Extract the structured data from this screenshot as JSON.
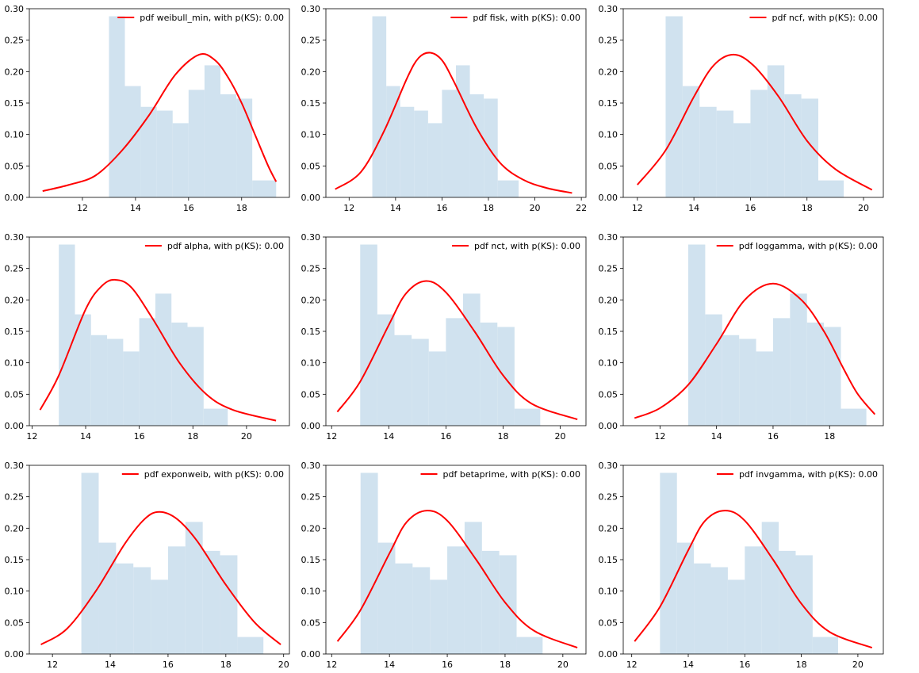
{
  "chart_data": {
    "type": "bar",
    "title": "",
    "xlabel": "",
    "ylabel": "",
    "grid": false,
    "legend_placement": "top-right",
    "hist_color": "#d0e2ef",
    "curve_color": "#ff0000",
    "histogram": {
      "bin_edges": [
        13.0,
        13.6,
        14.2,
        14.8,
        15.4,
        16.0,
        16.6,
        17.2,
        17.8,
        18.4,
        19.3
      ],
      "densities": [
        0.288,
        0.177,
        0.144,
        0.138,
        0.118,
        0.171,
        0.21,
        0.164,
        0.157,
        0.027
      ]
    },
    "panels": [
      {
        "legend": "pdf weibull_min, with p(KS): 0.00",
        "xlim": [
          10.0,
          19.8
        ],
        "ylim": [
          0,
          0.3
        ],
        "xticks": [
          "12",
          "14",
          "16",
          "18"
        ],
        "xtick_values": [
          12,
          14,
          16,
          18
        ],
        "yticks": [
          "0.00",
          "0.05",
          "0.10",
          "0.15",
          "0.20",
          "0.25",
          "0.30"
        ],
        "curve": {
          "x": [
            10.5,
            11.5,
            12.5,
            13.5,
            14.5,
            15.5,
            16.4,
            17.0,
            17.5,
            18.0,
            18.5,
            19.0,
            19.3
          ],
          "y": [
            0.01,
            0.02,
            0.035,
            0.075,
            0.13,
            0.195,
            0.227,
            0.218,
            0.19,
            0.15,
            0.1,
            0.05,
            0.025
          ]
        }
      },
      {
        "legend": "pdf fisk, with p(KS): 0.00",
        "xlim": [
          11.0,
          22.2
        ],
        "ylim": [
          0,
          0.3
        ],
        "xticks": [
          "12",
          "14",
          "16",
          "18",
          "20",
          "22"
        ],
        "xtick_values": [
          12,
          14,
          16,
          18,
          20,
          22
        ],
        "yticks": [
          "0.00",
          "0.05",
          "0.10",
          "0.15",
          "0.20",
          "0.25",
          "0.30"
        ],
        "curve": {
          "x": [
            11.4,
            12.5,
            13.5,
            14.5,
            15.0,
            15.5,
            16.0,
            16.5,
            17.5,
            18.5,
            19.5,
            20.5,
            21.6
          ],
          "y": [
            0.013,
            0.04,
            0.105,
            0.19,
            0.222,
            0.23,
            0.218,
            0.185,
            0.11,
            0.055,
            0.028,
            0.015,
            0.007
          ]
        }
      },
      {
        "legend": "pdf ncf, with p(KS): 0.00",
        "xlim": [
          11.5,
          20.7
        ],
        "ylim": [
          0,
          0.3
        ],
        "xticks": [
          "12",
          "14",
          "16",
          "18",
          "20"
        ],
        "xtick_values": [
          12,
          14,
          16,
          18,
          20
        ],
        "yticks": [
          "0.00",
          "0.05",
          "0.10",
          "0.15",
          "0.20",
          "0.25",
          "0.30"
        ],
        "curve": {
          "x": [
            12.0,
            13.0,
            14.0,
            14.7,
            15.4,
            16.1,
            17.0,
            18.0,
            19.0,
            20.3
          ],
          "y": [
            0.02,
            0.075,
            0.16,
            0.21,
            0.227,
            0.21,
            0.16,
            0.09,
            0.045,
            0.012
          ]
        }
      },
      {
        "legend": "pdf alpha, with p(KS): 0.00",
        "xlim": [
          11.9,
          21.6
        ],
        "ylim": [
          0,
          0.3
        ],
        "xticks": [
          "12",
          "14",
          "16",
          "18",
          "20"
        ],
        "xtick_values": [
          12,
          14,
          16,
          18,
          20
        ],
        "yticks": [
          "0.00",
          "0.05",
          "0.10",
          "0.15",
          "0.20",
          "0.25",
          "0.30"
        ],
        "curve": {
          "x": [
            12.3,
            13.0,
            14.0,
            14.6,
            15.1,
            15.7,
            16.5,
            17.5,
            18.5,
            19.5,
            21.1
          ],
          "y": [
            0.025,
            0.08,
            0.185,
            0.222,
            0.232,
            0.22,
            0.17,
            0.1,
            0.05,
            0.025,
            0.008
          ]
        }
      },
      {
        "legend": "pdf nct, with p(KS): 0.00",
        "xlim": [
          11.8,
          20.9
        ],
        "ylim": [
          0,
          0.3
        ],
        "xticks": [
          "12",
          "14",
          "16",
          "18",
          "20"
        ],
        "xtick_values": [
          12,
          14,
          16,
          18,
          20
        ],
        "yticks": [
          "0.00",
          "0.05",
          "0.10",
          "0.15",
          "0.20",
          "0.25",
          "0.30"
        ],
        "curve": {
          "x": [
            12.2,
            13.0,
            14.0,
            14.6,
            15.3,
            16.0,
            17.0,
            18.0,
            19.0,
            20.6
          ],
          "y": [
            0.022,
            0.07,
            0.16,
            0.21,
            0.23,
            0.212,
            0.15,
            0.08,
            0.035,
            0.01
          ]
        }
      },
      {
        "legend": "pdf loggamma, with p(KS): 0.00",
        "xlim": [
          10.7,
          19.9
        ],
        "ylim": [
          0,
          0.3
        ],
        "xticks": [
          "12",
          "14",
          "16",
          "18"
        ],
        "xtick_values": [
          12,
          14,
          16,
          18
        ],
        "yticks": [
          "0.00",
          "0.05",
          "0.10",
          "0.15",
          "0.20",
          "0.25",
          "0.30"
        ],
        "curve": {
          "x": [
            11.1,
            12.0,
            13.0,
            14.0,
            15.0,
            16.0,
            17.0,
            17.8,
            18.5,
            19.0,
            19.6
          ],
          "y": [
            0.012,
            0.028,
            0.065,
            0.13,
            0.2,
            0.226,
            0.2,
            0.15,
            0.09,
            0.05,
            0.018
          ]
        }
      },
      {
        "legend": "pdf exponweib, with p(KS): 0.00",
        "xlim": [
          11.2,
          20.2
        ],
        "ylim": [
          0,
          0.3
        ],
        "xticks": [
          "12",
          "14",
          "16",
          "18",
          "20"
        ],
        "xtick_values": [
          12,
          14,
          16,
          18,
          20
        ],
        "yticks": [
          "0.00",
          "0.05",
          "0.10",
          "0.15",
          "0.20",
          "0.25",
          "0.30"
        ],
        "curve": {
          "x": [
            11.6,
            12.5,
            13.5,
            14.5,
            15.2,
            15.7,
            16.3,
            17.0,
            18.0,
            19.0,
            19.9
          ],
          "y": [
            0.015,
            0.04,
            0.1,
            0.175,
            0.215,
            0.226,
            0.215,
            0.18,
            0.11,
            0.05,
            0.015
          ]
        }
      },
      {
        "legend": "pdf betaprime, with p(KS): 0.00",
        "xlim": [
          11.8,
          20.8
        ],
        "ylim": [
          0,
          0.3
        ],
        "xticks": [
          "12",
          "14",
          "16",
          "18",
          "20"
        ],
        "xtick_values": [
          12,
          14,
          16,
          18,
          20
        ],
        "yticks": [
          "0.00",
          "0.05",
          "0.10",
          "0.15",
          "0.20",
          "0.25",
          "0.30"
        ],
        "curve": {
          "x": [
            12.2,
            13.0,
            14.0,
            14.6,
            15.3,
            16.0,
            17.0,
            18.0,
            19.0,
            20.5
          ],
          "y": [
            0.02,
            0.07,
            0.16,
            0.21,
            0.228,
            0.212,
            0.15,
            0.082,
            0.037,
            0.01
          ]
        }
      },
      {
        "legend": "pdf invgamma, with p(KS): 0.00",
        "xlim": [
          11.7,
          20.9
        ],
        "ylim": [
          0,
          0.3
        ],
        "xticks": [
          "12",
          "14",
          "16",
          "18",
          "20"
        ],
        "xtick_values": [
          12,
          14,
          16,
          18,
          20
        ],
        "yticks": [
          "0.00",
          "0.05",
          "0.10",
          "0.15",
          "0.20",
          "0.25",
          "0.30"
        ],
        "curve": {
          "x": [
            12.1,
            13.0,
            14.0,
            14.6,
            15.3,
            16.0,
            17.0,
            18.0,
            19.0,
            20.5
          ],
          "y": [
            0.02,
            0.075,
            0.165,
            0.212,
            0.228,
            0.212,
            0.15,
            0.08,
            0.035,
            0.01
          ]
        }
      }
    ]
  }
}
